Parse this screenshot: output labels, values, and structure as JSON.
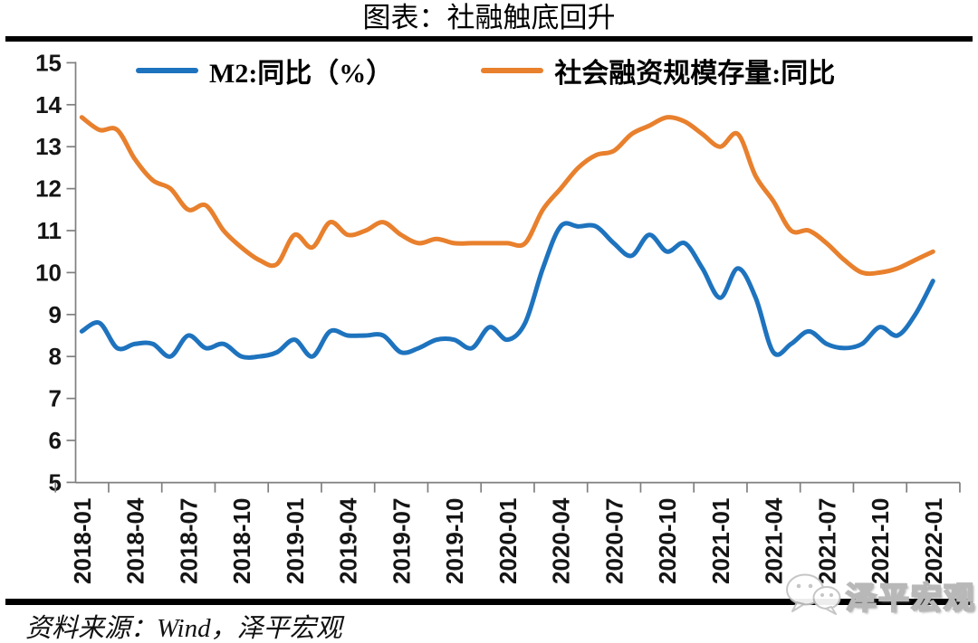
{
  "page": {
    "title": "图表：社融触底回升"
  },
  "footer": {
    "source": "资料来源：Wind，泽平宏观"
  },
  "watermark": {
    "icon": "wechat-icon",
    "text": "泽平宏观"
  },
  "chart_data": {
    "type": "line",
    "title": "图表：社融触底回升",
    "xlabel": "",
    "ylabel": "",
    "ylim": [
      5,
      15
    ],
    "yticks": [
      15,
      14,
      13,
      12,
      11,
      10,
      9,
      8,
      7,
      6,
      5
    ],
    "grid": false,
    "legend_position": "top",
    "x": [
      "2018-01",
      "2018-02",
      "2018-03",
      "2018-04",
      "2018-05",
      "2018-06",
      "2018-07",
      "2018-08",
      "2018-09",
      "2018-10",
      "2018-11",
      "2018-12",
      "2019-01",
      "2019-02",
      "2019-03",
      "2019-04",
      "2019-05",
      "2019-06",
      "2019-07",
      "2019-08",
      "2019-09",
      "2019-10",
      "2019-11",
      "2019-12",
      "2020-01",
      "2020-02",
      "2020-03",
      "2020-04",
      "2020-05",
      "2020-06",
      "2020-07",
      "2020-08",
      "2020-09",
      "2020-10",
      "2020-11",
      "2020-12",
      "2021-01",
      "2021-02",
      "2021-03",
      "2021-04",
      "2021-05",
      "2021-06",
      "2021-07",
      "2021-08",
      "2021-09",
      "2021-10",
      "2021-11",
      "2021-12",
      "2022-01"
    ],
    "x_tick_labels": [
      "2018-01",
      "2018-04",
      "2018-07",
      "2018-10",
      "2019-01",
      "2019-04",
      "2019-07",
      "2019-10",
      "2020-01",
      "2020-04",
      "2020-07",
      "2020-10",
      "2021-01",
      "2021-04",
      "2021-07",
      "2021-10",
      "2022-01"
    ],
    "series": [
      {
        "name": "M2:同比（%）",
        "color": "#1e73be",
        "values": [
          8.6,
          8.8,
          8.2,
          8.3,
          8.3,
          8.0,
          8.5,
          8.2,
          8.3,
          8.0,
          8.0,
          8.1,
          8.4,
          8.0,
          8.6,
          8.5,
          8.5,
          8.5,
          8.1,
          8.2,
          8.4,
          8.4,
          8.2,
          8.7,
          8.4,
          8.8,
          10.1,
          11.1,
          11.1,
          11.1,
          10.7,
          10.4,
          10.9,
          10.5,
          10.7,
          10.1,
          9.4,
          10.1,
          9.4,
          8.1,
          8.3,
          8.6,
          8.3,
          8.2,
          8.3,
          8.7,
          8.5,
          9.0,
          9.8
        ]
      },
      {
        "name": "社会融资规模存量:同比",
        "color": "#e8802d",
        "values": [
          13.7,
          13.4,
          13.4,
          12.7,
          12.2,
          12.0,
          11.5,
          11.6,
          11.0,
          10.6,
          10.3,
          10.2,
          10.9,
          10.6,
          11.2,
          10.9,
          11.0,
          11.2,
          10.9,
          10.7,
          10.8,
          10.7,
          10.7,
          10.7,
          10.7,
          10.7,
          11.5,
          12.0,
          12.5,
          12.8,
          12.9,
          13.3,
          13.5,
          13.7,
          13.6,
          13.3,
          13.0,
          13.3,
          12.3,
          11.7,
          11.0,
          11.0,
          10.7,
          10.3,
          10.0,
          10.0,
          10.1,
          10.3,
          10.5
        ]
      }
    ]
  }
}
